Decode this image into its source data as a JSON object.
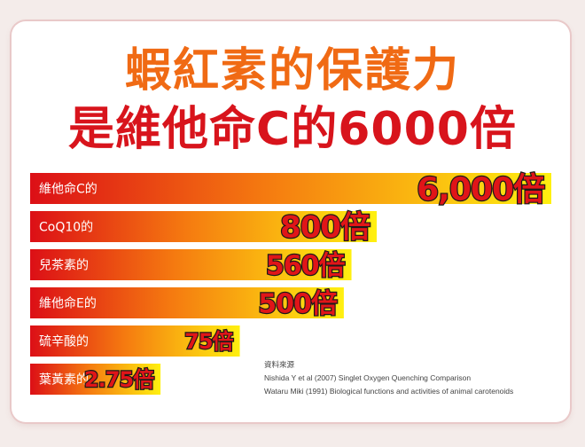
{
  "title_line1": "蝦紅素的保護力",
  "title_line2": "是維他命C的6000倍",
  "chart_data": {
    "type": "bar",
    "orientation": "horizontal",
    "categories": [
      "維他命C的",
      "CoQ10的",
      "兒茶素的",
      "維他命E的",
      "硫辛酸的",
      "葉黃素的"
    ],
    "values": [
      6000,
      800,
      560,
      500,
      75,
      2.75
    ],
    "value_labels": [
      "6,000倍",
      "800倍",
      "560倍",
      "500倍",
      "75倍",
      "2.75倍"
    ],
    "scale": "non-linear (illustrative)",
    "colors": {
      "bar_start": "#dc0f16",
      "bar_mid": "#f57a10",
      "bar_end": "#fff010",
      "label_fill": "#e01518",
      "label_stroke": "#1a1a1a"
    }
  },
  "sources": {
    "heading": "資料來源",
    "lines": [
      "Nishida Y et al (2007) Singlet Oxygen Quenching Comparison",
      "Wataru Miki (1991) Biological functions and activities of animal carotenoids"
    ]
  }
}
